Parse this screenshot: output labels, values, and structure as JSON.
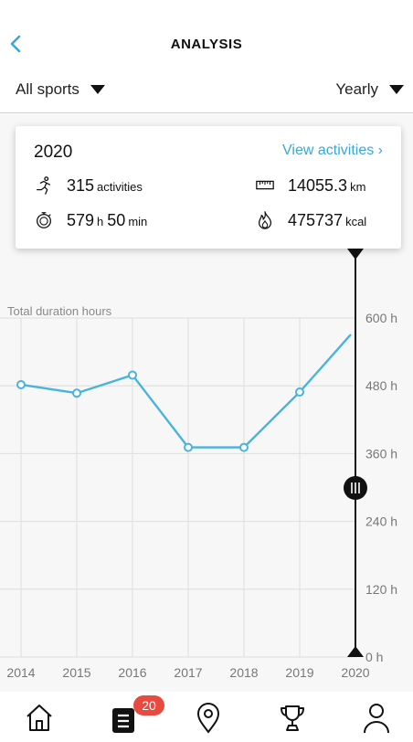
{
  "header": {
    "title": "ANALYSIS",
    "back_icon": "chevron-left-icon"
  },
  "filters": {
    "sport": "All sports",
    "period": "Yearly"
  },
  "summary": {
    "year": "2020",
    "view_link": "View activities ›",
    "activities_value": "315",
    "activities_unit": "activities",
    "distance_value": "14055.3",
    "distance_unit": "km",
    "duration_h": "579",
    "duration_h_unit": "h",
    "duration_min": "50",
    "duration_min_unit": "min",
    "calories_value": "475737",
    "calories_unit": "kcal"
  },
  "chart_data": {
    "type": "line",
    "ylabel": "Total duration hours",
    "x": [
      "2014",
      "2015",
      "2016",
      "2017",
      "2018",
      "2019",
      "2020"
    ],
    "series": [
      {
        "values": [
          482,
          467,
          499,
          371,
          371,
          469,
          580
        ]
      }
    ],
    "ylim": [
      0,
      600
    ],
    "yticks": [
      "0 h",
      "120 h",
      "240 h",
      "360 h",
      "480 h",
      "600 h"
    ],
    "selected": "2020",
    "color": "#4ab3dc",
    "grid": true
  },
  "nav": {
    "badge": "20",
    "items": [
      "home-icon",
      "diary-icon",
      "map-pin-icon",
      "trophy-icon",
      "profile-icon"
    ]
  }
}
